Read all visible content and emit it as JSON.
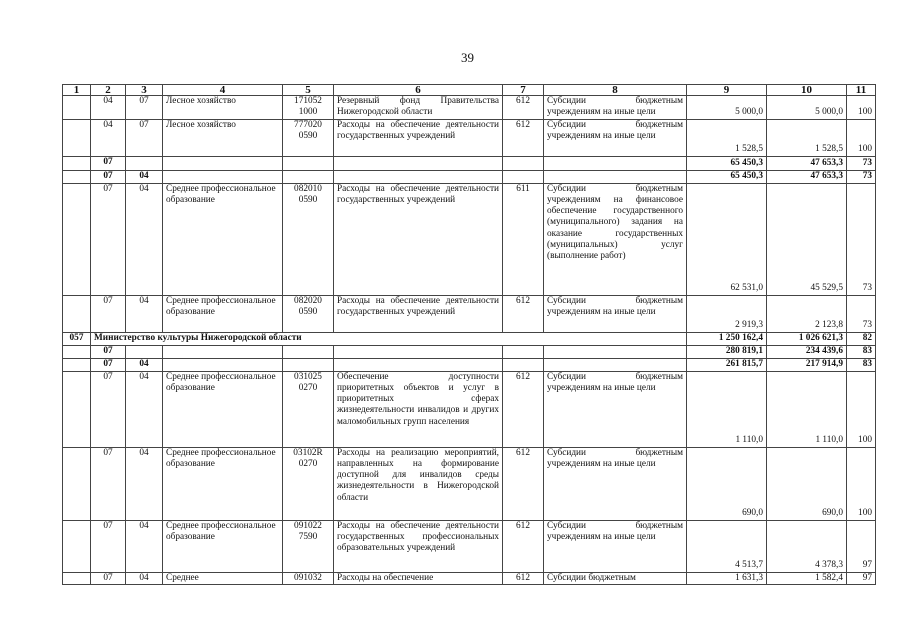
{
  "page_number": "39",
  "header": [
    "1",
    "2",
    "3",
    "4",
    "5",
    "6",
    "7",
    "8",
    "9",
    "10",
    "11"
  ],
  "rows": [
    {
      "bold": false,
      "c1": "",
      "c2": "04",
      "c3": "07",
      "c4": "Лесное хозяйство",
      "c5": "171052 1000",
      "c6": "Резервный фонд Правительства Нижегородской области",
      "c7": "612",
      "c8": "Субсидии бюджетным учреждениям на иные цели",
      "c9": "5 000,0",
      "c10": "5 000,0",
      "c11": "100"
    },
    {
      "bold": false,
      "c1": "",
      "c2": "04",
      "c3": "07",
      "c4": "Лесное хозяйство",
      "c5": "777020 0590",
      "c6": "Расходы на обеспечение деятельности государственных учреждений",
      "c7": "612",
      "c8": "Субсидии бюджетным учреждениям на иные цели",
      "c9": "1 528,5",
      "c10": "1 528,5",
      "c11": "100"
    },
    {
      "bold": true,
      "c1": "",
      "c2": "07",
      "c3": "",
      "c4": "",
      "c5": "",
      "c6": "",
      "c7": "",
      "c8": "",
      "c9": "65 450,3",
      "c10": "47 653,3",
      "c11": "73"
    },
    {
      "bold": true,
      "c1": "",
      "c2": "07",
      "c3": "04",
      "c4": "",
      "c5": "",
      "c6": "",
      "c7": "",
      "c8": "",
      "c9": "65 450,3",
      "c10": "47 653,3",
      "c11": "73"
    },
    {
      "bold": false,
      "c1": "",
      "c2": "07",
      "c3": "04",
      "c4": "Среднее профессиональное образование",
      "c5": "082010 0590",
      "c6": "Расходы на обеспечение деятельности государственных учреждений",
      "c7": "611",
      "c8": "Субсидии бюджетным учреждениям на финансовое обеспечение государственного (муниципального) задания на оказание государственных (муниципальных) услуг (выполнение работ)",
      "c9": "62 531,0",
      "c10": "45 529,5",
      "c11": "73"
    },
    {
      "bold": false,
      "c1": "",
      "c2": "07",
      "c3": "04",
      "c4": "Среднее профессиональное образование",
      "c5": "082020 0590",
      "c6": "Расходы на обеспечение деятельности государственных учреждений",
      "c7": "612",
      "c8": "Субсидии бюджетным учреждениям на иные цели",
      "c9": "2 919,3",
      "c10": "2 123,8",
      "c11": "73"
    },
    {
      "bold": true,
      "merged": true,
      "c1": "057",
      "name": "Министерство культуры Нижегородской области",
      "c9": "1 250 162,4",
      "c10": "1 026 621,3",
      "c11": "82"
    },
    {
      "bold": true,
      "c1": "",
      "c2": "07",
      "c3": "",
      "c4": "",
      "c5": "",
      "c6": "",
      "c7": "",
      "c8": "",
      "c9": "280 819,1",
      "c10": "234 439,6",
      "c11": "83"
    },
    {
      "bold": true,
      "c1": "",
      "c2": "07",
      "c3": "04",
      "c4": "",
      "c5": "",
      "c6": "",
      "c7": "",
      "c8": "",
      "c9": "261 815,7",
      "c10": "217 914,9",
      "c11": "83"
    },
    {
      "bold": false,
      "c1": "",
      "c2": "07",
      "c3": "04",
      "c4": "Среднее профессиональное образование",
      "c5": "031025 0270",
      "c6": "Обеспечение доступности приоритетных объектов и услуг в приоритетных сферах жизнедеятельности инвалидов и других маломобильных групп населения",
      "c7": "612",
      "c8": "Субсидии бюджетным учреждениям на иные цели",
      "c9": "1 110,0",
      "c10": "1 110,0",
      "c11": "100"
    },
    {
      "bold": false,
      "c1": "",
      "c2": "07",
      "c3": "04",
      "c4": "Среднее профессиональное образование",
      "c5": "03102R 0270",
      "c6": "Расходы на реализацию мероприятий, направленных на формирование доступной для инвалидов среды жизнедеятельности в Нижегородской области",
      "c7": "612",
      "c8": "Субсидии бюджетным учреждениям на иные цели",
      "c9": "690,0",
      "c10": "690,0",
      "c11": "100"
    },
    {
      "bold": false,
      "c1": "",
      "c2": "07",
      "c3": "04",
      "c4": "Среднее профессиональное образование",
      "c5": "091022 7590",
      "c6": "Расходы на обеспечение деятельности государственных профессиональных образовательных учреждений",
      "c7": "612",
      "c8": "Субсидии бюджетным учреждениям на иные цели",
      "c9": "4 513,7",
      "c10": "4 378,3",
      "c11": "97"
    },
    {
      "bold": false,
      "c1": "",
      "c2": "07",
      "c3": "04",
      "c4": "Среднее",
      "c5": "091032",
      "c6": "Расходы на обеспечение",
      "c7": "612",
      "c8": "Субсидии бюджетным",
      "c9": "1 631,3",
      "c10": "1 582,4",
      "c11": "97"
    }
  ]
}
